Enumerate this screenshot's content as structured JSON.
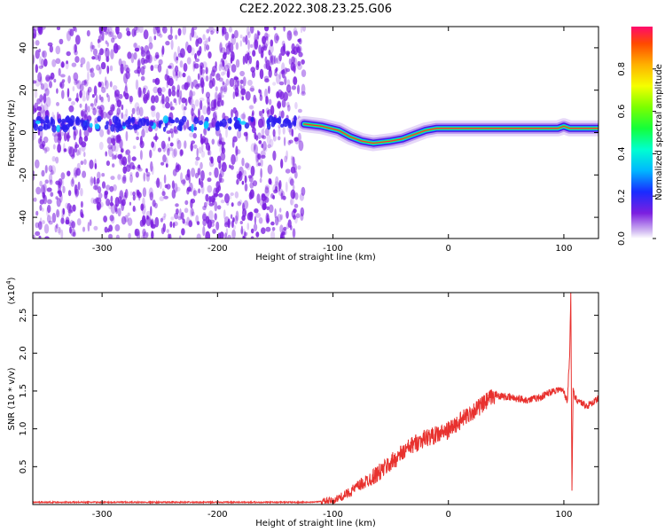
{
  "title": "C2E2.2022.308.23.25.G06",
  "colors": {
    "spectrogram_noise": "#7b1fe0",
    "snr_line": "#e8312e"
  },
  "chart_data": [
    {
      "type": "heatmap",
      "xlabel": "Height of straight line (km)",
      "ylabel": "Frequency (Hz)",
      "xlim": [
        -360,
        130
      ],
      "ylim": [
        -50,
        50
      ],
      "xticks": [
        -300,
        -200,
        -100,
        0,
        100
      ],
      "yticks": [
        -40,
        -20,
        0,
        20,
        40
      ],
      "colorbar": {
        "label": "Normalized spectral amplitude",
        "range": [
          0,
          1
        ],
        "ticks": [
          "0.0",
          "0.2",
          "0.4",
          "0.6",
          "0.8"
        ],
        "colormap": "rainbow"
      },
      "carrier_track": {
        "x": [
          -125,
          -110,
          -95,
          -85,
          -75,
          -65,
          -50,
          -40,
          -30,
          -20,
          -10,
          0,
          20,
          40,
          60,
          80,
          95,
          100,
          105,
          130
        ],
        "y": [
          4,
          3,
          1,
          -2,
          -4,
          -5,
          -4,
          -3,
          -1,
          1,
          2,
          2,
          2,
          2,
          2,
          2,
          2,
          3,
          2,
          2
        ]
      },
      "grid": false
    },
    {
      "type": "line",
      "xlabel": "Height of straight line (km)",
      "ylabel": "SNR (10 * v/v)",
      "y_scale_label": "(x10",
      "y_scale_exponent": "4",
      "xlim": [
        -360,
        130
      ],
      "ylim": [
        0,
        2.8
      ],
      "xticks": [
        -300,
        -200,
        -100,
        0,
        100
      ],
      "yticks": [
        "0.5",
        "1.0",
        "1.5",
        "2.0",
        "2.5"
      ],
      "series": [
        {
          "x": [
            -360,
            -300,
            -200,
            -120,
            -100,
            -90,
            -80,
            -70,
            -60,
            -50,
            -40,
            -30,
            -20,
            -10,
            0,
            10,
            20,
            30,
            40,
            50,
            60,
            70,
            80,
            90,
            95,
            100,
            103,
            105,
            106,
            107,
            108,
            110,
            115,
            120,
            125,
            130
          ],
          "y": [
            0.03,
            0.03,
            0.03,
            0.03,
            0.05,
            0.12,
            0.22,
            0.32,
            0.42,
            0.55,
            0.68,
            0.8,
            0.88,
            0.92,
            0.98,
            1.1,
            1.22,
            1.32,
            1.45,
            1.42,
            1.4,
            1.38,
            1.42,
            1.5,
            1.52,
            1.5,
            1.35,
            2.0,
            2.8,
            0.2,
            1.5,
            1.4,
            1.35,
            1.3,
            1.35,
            1.4
          ]
        }
      ],
      "grid": false
    }
  ]
}
